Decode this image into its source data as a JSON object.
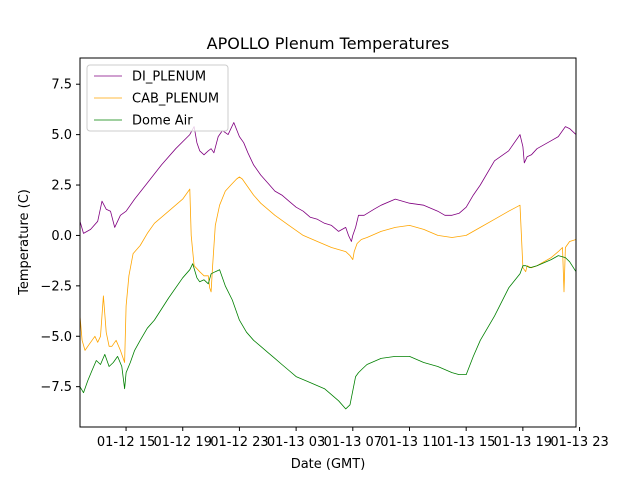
{
  "chart_data": {
    "type": "line",
    "title": "APOLLO Plenum Temperatures",
    "xlabel": "Date (GMT)",
    "ylabel": "Temperature (C)",
    "xlim": [
      11.75,
      46.75
    ],
    "ylim": [
      -9.5,
      8.8
    ],
    "grid": false,
    "legend_position": "top-left",
    "x_unit": "hours since 01-12 00:00 GMT",
    "x_ticks": [
      {
        "value": 15,
        "label": "01-12 15"
      },
      {
        "value": 19,
        "label": "01-12 19"
      },
      {
        "value": 23,
        "label": "01-12 23"
      },
      {
        "value": 27,
        "label": "01-13 03"
      },
      {
        "value": 31,
        "label": "01-13 07"
      },
      {
        "value": 35,
        "label": "01-13 11"
      },
      {
        "value": 39,
        "label": "01-13 15"
      },
      {
        "value": 43,
        "label": "01-13 19"
      },
      {
        "value": 47,
        "label": "01-13 23"
      }
    ],
    "y_ticks": [
      {
        "value": -7.5,
        "label": "−7.5"
      },
      {
        "value": -5.0,
        "label": "−5.0"
      },
      {
        "value": -2.5,
        "label": "−2.5"
      },
      {
        "value": 0.0,
        "label": "0.0"
      },
      {
        "value": 2.5,
        "label": "2.5"
      },
      {
        "value": 5.0,
        "label": "5.0"
      },
      {
        "value": 7.5,
        "label": "7.5"
      }
    ],
    "series": [
      {
        "name": "DI_PLENUM",
        "color": "#800080",
        "x": [
          11.75,
          12.0,
          12.5,
          13.0,
          13.3,
          13.6,
          13.9,
          14.2,
          14.6,
          15.0,
          15.6,
          16.5,
          17.5,
          18.5,
          19.5,
          19.8,
          20.0,
          20.2,
          20.5,
          20.8,
          21.0,
          21.2,
          21.5,
          21.8,
          22.2,
          22.6,
          23.0,
          23.3,
          23.6,
          24.0,
          24.5,
          25.0,
          25.5,
          26.0,
          26.5,
          27.0,
          27.5,
          28.0,
          28.5,
          29.0,
          29.5,
          30.0,
          30.5,
          30.7,
          30.9,
          31.0,
          31.2,
          31.4,
          31.8,
          32.5,
          33.0,
          34.0,
          35.0,
          36.0,
          37.0,
          37.5,
          38.0,
          38.5,
          39.0,
          39.5,
          40.0,
          41.0,
          42.0,
          42.8,
          43.0,
          43.1,
          43.3,
          43.6,
          44.0,
          45.0,
          45.5,
          46.0,
          46.3,
          46.75
        ],
        "y": [
          0.7,
          0.1,
          0.3,
          0.7,
          1.7,
          1.3,
          1.2,
          0.4,
          1.0,
          1.2,
          1.8,
          2.6,
          3.5,
          4.3,
          5.0,
          5.4,
          4.6,
          4.2,
          4.0,
          4.2,
          4.3,
          4.1,
          4.9,
          5.2,
          5.0,
          5.6,
          4.9,
          4.6,
          4.1,
          3.5,
          3.0,
          2.6,
          2.2,
          2.0,
          1.7,
          1.4,
          1.2,
          0.9,
          0.8,
          0.6,
          0.5,
          0.2,
          0.4,
          0.0,
          -0.3,
          0.0,
          0.4,
          1.0,
          1.0,
          1.3,
          1.5,
          1.8,
          1.6,
          1.5,
          1.2,
          1.0,
          1.0,
          1.1,
          1.4,
          2.0,
          2.5,
          3.7,
          4.2,
          5.0,
          4.4,
          3.6,
          3.9,
          4.0,
          4.3,
          4.7,
          4.9,
          5.4,
          5.3,
          5.0
        ]
      },
      {
        "name": "CAB_PLENUM",
        "color": "#ffa500",
        "x": [
          11.75,
          11.9,
          12.1,
          12.4,
          12.8,
          13.0,
          13.2,
          13.4,
          13.6,
          13.8,
          14.0,
          14.3,
          14.6,
          14.9,
          15.0,
          15.2,
          15.5,
          16.0,
          16.5,
          17.0,
          18.0,
          19.0,
          19.5,
          19.6,
          19.8,
          20.2,
          20.5,
          20.8,
          20.9,
          21.0,
          21.1,
          21.3,
          21.6,
          22.0,
          22.4,
          22.8,
          23.0,
          23.2,
          23.4,
          23.6,
          24.0,
          24.5,
          25.5,
          26.5,
          27.5,
          28.5,
          29.5,
          30.5,
          30.8,
          31.0,
          31.1,
          31.3,
          31.6,
          32.0,
          33.0,
          34.0,
          35.0,
          36.0,
          37.0,
          38.0,
          39.0,
          40.0,
          41.0,
          42.0,
          42.8,
          43.0,
          43.2,
          43.3,
          43.6,
          44.0,
          45.0,
          45.5,
          45.8,
          45.9,
          46.0,
          46.3,
          46.75
        ],
        "y": [
          -4.0,
          -5.2,
          -5.7,
          -5.4,
          -5.0,
          -5.3,
          -5.0,
          -3.0,
          -4.8,
          -5.5,
          -5.5,
          -5.2,
          -5.7,
          -6.3,
          -3.5,
          -2.0,
          -0.9,
          -0.5,
          0.1,
          0.6,
          1.2,
          1.8,
          2.3,
          0.0,
          -1.5,
          -1.8,
          -2.0,
          -2.0,
          -2.6,
          -2.8,
          -1.6,
          0.5,
          1.5,
          2.2,
          2.5,
          2.8,
          2.9,
          2.8,
          2.6,
          2.4,
          2.0,
          1.6,
          1.0,
          0.5,
          0.0,
          -0.3,
          -0.6,
          -0.8,
          -1.0,
          -1.2,
          -0.8,
          -0.4,
          -0.2,
          -0.1,
          0.2,
          0.4,
          0.5,
          0.3,
          0.0,
          -0.1,
          0.0,
          0.4,
          0.8,
          1.2,
          1.5,
          -1.6,
          -1.8,
          -1.5,
          -1.6,
          -1.5,
          -1.1,
          -0.8,
          -0.6,
          -2.8,
          -0.6,
          -0.3,
          -0.2
        ]
      },
      {
        "name": "Dome Air",
        "color": "#008000",
        "x": [
          11.75,
          12.0,
          12.3,
          12.6,
          12.9,
          13.2,
          13.5,
          13.8,
          14.1,
          14.4,
          14.7,
          14.9,
          15.0,
          15.3,
          15.6,
          16.0,
          16.5,
          17.0,
          18.0,
          19.0,
          19.5,
          19.7,
          20.0,
          20.2,
          20.5,
          20.8,
          21.0,
          21.3,
          21.6,
          22.0,
          22.5,
          23.0,
          23.5,
          24.0,
          24.5,
          25.0,
          25.5,
          26.0,
          26.5,
          27.0,
          28.0,
          29.0,
          29.5,
          30.0,
          30.5,
          30.8,
          31.0,
          31.2,
          31.4,
          31.7,
          32.0,
          33.0,
          34.0,
          35.0,
          36.0,
          37.0,
          38.0,
          38.5,
          39.0,
          39.5,
          40.0,
          41.0,
          42.0,
          42.8,
          43.0,
          43.2,
          43.5,
          44.0,
          45.0,
          45.5,
          46.0,
          46.3,
          46.75
        ],
        "y": [
          -7.5,
          -7.8,
          -7.2,
          -6.7,
          -6.2,
          -6.4,
          -5.9,
          -6.5,
          -6.3,
          -6.0,
          -6.5,
          -7.6,
          -6.8,
          -6.3,
          -5.7,
          -5.2,
          -4.6,
          -4.2,
          -3.1,
          -2.1,
          -1.7,
          -1.4,
          -2.1,
          -2.3,
          -2.2,
          -2.4,
          -1.9,
          -1.8,
          -1.7,
          -2.5,
          -3.2,
          -4.2,
          -4.8,
          -5.2,
          -5.5,
          -5.8,
          -6.1,
          -6.4,
          -6.7,
          -7.0,
          -7.3,
          -7.6,
          -7.9,
          -8.2,
          -8.6,
          -8.4,
          -7.7,
          -7.0,
          -6.8,
          -6.6,
          -6.4,
          -6.1,
          -6.0,
          -6.0,
          -6.3,
          -6.5,
          -6.8,
          -6.9,
          -6.9,
          -6.0,
          -5.2,
          -4.0,
          -2.6,
          -1.9,
          -1.5,
          -1.5,
          -1.6,
          -1.5,
          -1.2,
          -1.0,
          -1.1,
          -1.3,
          -1.8
        ]
      }
    ]
  }
}
